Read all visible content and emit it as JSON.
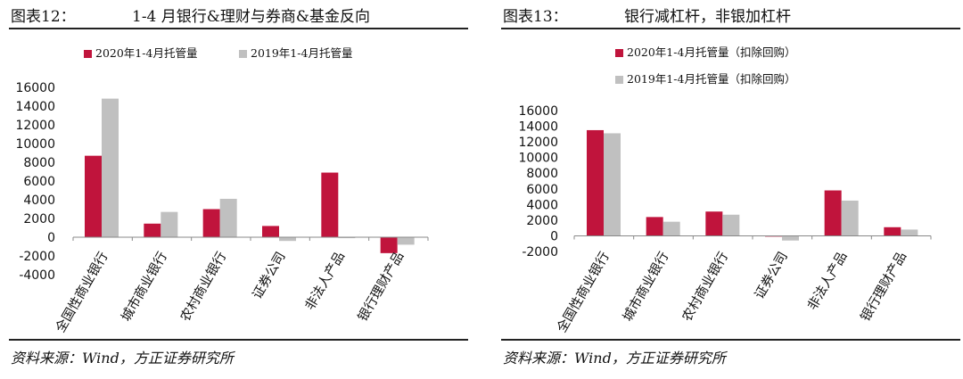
{
  "colors": {
    "series_2020": "#c0143c",
    "series_2019": "#c0c0c0"
  },
  "left": {
    "label": "图表12：",
    "title": "1-4 月银行&理财与券商&基金反向",
    "source": "资料来源：Wind，方正证券研究所",
    "chart_data": {
      "type": "bar",
      "categories": [
        "全国性商业银行",
        "城市商业银行",
        "农村商业银行",
        "证券公司",
        "非法人产品",
        "银行理财产品"
      ],
      "series": [
        {
          "name": "2020年1-4月托管量",
          "values": [
            8700,
            1450,
            3000,
            1200,
            6900,
            -1700
          ]
        },
        {
          "name": "2019年1-4月托管量",
          "values": [
            14800,
            2700,
            4100,
            -400,
            -100,
            -800
          ]
        }
      ],
      "yticks": [
        16000,
        14000,
        12000,
        10000,
        8000,
        6000,
        4000,
        2000,
        0,
        -2000,
        -4000
      ],
      "ylim": [
        -4000,
        16000
      ],
      "legend": "top"
    }
  },
  "right": {
    "label": "图表13：",
    "title": "银行减杠杆，非银加杠杆",
    "source": "资料来源：Wind，方正证券研究所",
    "chart_data": {
      "type": "bar",
      "categories": [
        "全国性商业银行",
        "城市商业银行",
        "农村商业银行",
        "证券公司",
        "非法人产品",
        "银行理财产品"
      ],
      "series": [
        {
          "name": "2020年1-4月托管量（扣除回购）",
          "values": [
            13500,
            2400,
            3100,
            -100,
            5800,
            1100
          ]
        },
        {
          "name": "2019年1-4月托管量（扣除回购）",
          "values": [
            13100,
            1800,
            2700,
            -600,
            4500,
            800
          ]
        }
      ],
      "yticks": [
        16000,
        14000,
        12000,
        10000,
        8000,
        6000,
        4000,
        2000,
        0,
        -2000
      ],
      "ylim": [
        -2000,
        16000
      ],
      "legend": "top-stacked"
    }
  }
}
